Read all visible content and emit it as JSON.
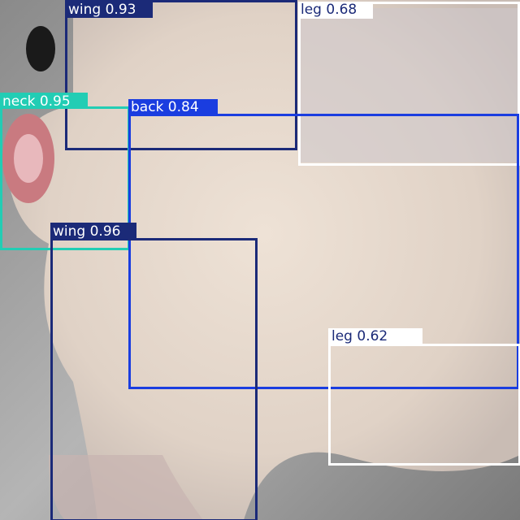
{
  "detections": [
    {
      "label": "wing 0.93"
    },
    {
      "label": "leg 0.68"
    },
    {
      "label": "neck 0.95"
    },
    {
      "label": "back 0.84"
    },
    {
      "label": "wing 0.96"
    },
    {
      "label": "leg 0.62"
    }
  ]
}
